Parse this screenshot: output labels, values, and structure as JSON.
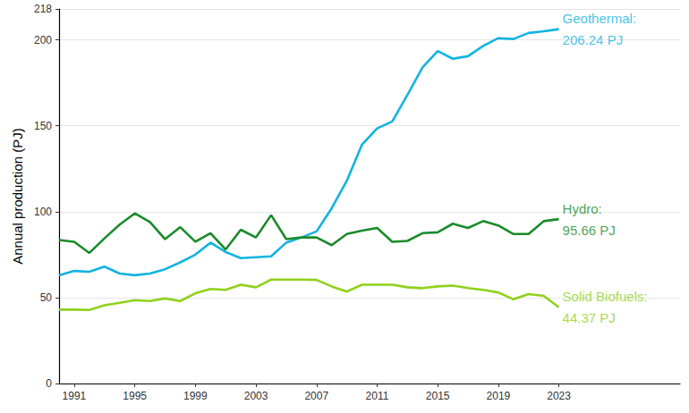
{
  "chart_data": {
    "type": "line",
    "y_label": "Annual production (PJ)",
    "x": [
      1990,
      1991,
      1992,
      1993,
      1994,
      1995,
      1996,
      1997,
      1998,
      1999,
      2000,
      2001,
      2002,
      2003,
      2004,
      2005,
      2006,
      2007,
      2008,
      2009,
      2010,
      2011,
      2012,
      2013,
      2014,
      2015,
      2016,
      2017,
      2018,
      2019,
      2020,
      2021,
      2022,
      2023
    ],
    "series": [
      {
        "name": "Geothermal",
        "color": "#12b4e0",
        "values": [
          63,
          65.5,
          65,
          68,
          64,
          63,
          64,
          66.5,
          70.5,
          75,
          82,
          76.5,
          73,
          73.5,
          74,
          82,
          85,
          88.5,
          102,
          118,
          139,
          148.5,
          152.5,
          168,
          184,
          193.5,
          189,
          190.5,
          196.5,
          201,
          200.5,
          204,
          205,
          206.24
        ]
      },
      {
        "name": "Hydro",
        "color": "#1a8a2a",
        "values": [
          83.5,
          82.5,
          76,
          84.5,
          92.5,
          99,
          94,
          84,
          91,
          82.5,
          87.5,
          78,
          89.5,
          85,
          98,
          84,
          85,
          85,
          80.5,
          87,
          89,
          90.5,
          82.5,
          83,
          87.5,
          88,
          93,
          90.5,
          94.5,
          92,
          87,
          87,
          94.5,
          95.66
        ]
      },
      {
        "name": "Solid Biofuels",
        "color": "#8fd11a",
        "values": [
          43,
          43,
          42.8,
          45.5,
          47,
          48.5,
          48,
          49.5,
          48,
          52.5,
          55,
          54.5,
          57.5,
          56,
          60.5,
          60.5,
          60.5,
          60.3,
          56.5,
          53.5,
          57.5,
          57.5,
          57.5,
          56,
          55.5,
          56.5,
          57,
          55.5,
          54.5,
          53,
          49,
          52,
          51,
          44.37
        ]
      }
    ],
    "annotations": [
      {
        "text": "Geothermal:\n206.24 PJ",
        "x": 2023,
        "y": 206.24,
        "color": "#12b4e0"
      },
      {
        "text": "Hydro:\n95.66 PJ",
        "x": 2023,
        "y": 95.66,
        "color": "#1a8a2a"
      },
      {
        "text": "Solid Biofuels:\n44.37 PJ",
        "x": 2023,
        "y": 44.37,
        "color": "#8fd11a"
      }
    ],
    "xlim": [
      1990,
      2031
    ],
    "xticks": [
      1991,
      1995,
      1999,
      2003,
      2007,
      2011,
      2015,
      2019,
      2023
    ],
    "ylim": [
      0,
      218
    ],
    "yticks": [
      0,
      50,
      100,
      150,
      200
    ],
    "grid": true
  }
}
